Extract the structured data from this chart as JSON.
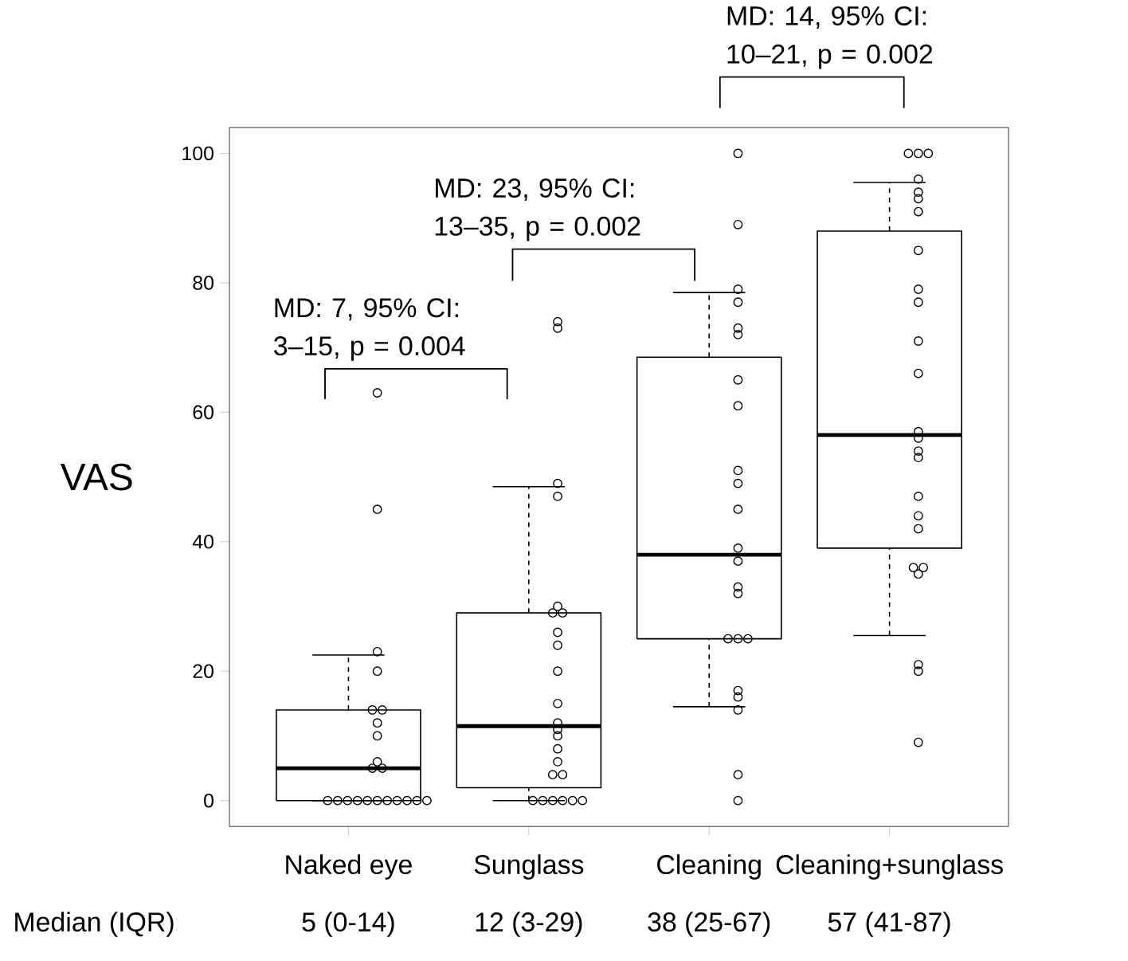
{
  "chart_data": {
    "type": "box",
    "ylabel": "VAS",
    "categories": [
      "Naked eye",
      "Sunglass",
      "Cleaning",
      "Cleaning+sunglass"
    ],
    "boxes": [
      {
        "low": 0,
        "q1": 0,
        "median": 5,
        "q3": 14,
        "high": 22.5
      },
      {
        "low": 0,
        "q1": 2,
        "median": 11.5,
        "q3": 29,
        "high": 48.5
      },
      {
        "low": 14.5,
        "q1": 25,
        "median": 38,
        "q3": 68.5,
        "high": 78.5
      },
      {
        "low": 25.5,
        "q1": 39,
        "median": 56.5,
        "q3": 88,
        "high": 95.5
      }
    ],
    "series": [
      {
        "type": "scatter",
        "color": "#000000",
        "x": [
          "Naked eye",
          "Naked eye",
          "Naked eye",
          "Naked eye",
          "Naked eye",
          "Naked eye",
          "Naked eye",
          "Naked eye",
          "Naked eye",
          "Naked eye",
          "Naked eye",
          "Naked eye",
          "Naked eye",
          "Naked eye",
          "Naked eye",
          "Naked eye",
          "Naked eye",
          "Naked eye",
          "Naked eye",
          "Naked eye",
          "Naked eye",
          "Naked eye"
        ],
        "values": [
          63,
          45,
          23,
          20,
          14,
          14,
          12,
          10,
          6,
          5,
          5,
          0,
          0,
          0,
          0,
          0,
          0,
          0,
          0,
          0,
          0,
          0
        ]
      },
      {
        "type": "scatter",
        "color": "#000000",
        "x": [
          "Sunglass",
          "Sunglass",
          "Sunglass",
          "Sunglass",
          "Sunglass",
          "Sunglass",
          "Sunglass",
          "Sunglass",
          "Sunglass",
          "Sunglass",
          "Sunglass",
          "Sunglass",
          "Sunglass",
          "Sunglass",
          "Sunglass",
          "Sunglass",
          "Sunglass",
          "Sunglass",
          "Sunglass",
          "Sunglass",
          "Sunglass",
          "Sunglass",
          "Sunglass",
          "Sunglass"
        ],
        "values": [
          74,
          73,
          49,
          47,
          30,
          29,
          29,
          26,
          24,
          20,
          15,
          12,
          11,
          10,
          8,
          6,
          4,
          4,
          0,
          0,
          0,
          0,
          0,
          0
        ]
      },
      {
        "type": "scatter",
        "color": "#000000",
        "x": [
          "Cleaning",
          "Cleaning",
          "Cleaning",
          "Cleaning",
          "Cleaning",
          "Cleaning",
          "Cleaning",
          "Cleaning",
          "Cleaning",
          "Cleaning",
          "Cleaning",
          "Cleaning",
          "Cleaning",
          "Cleaning",
          "Cleaning",
          "Cleaning",
          "Cleaning",
          "Cleaning",
          "Cleaning",
          "Cleaning",
          "Cleaning",
          "Cleaning",
          "Cleaning"
        ],
        "values": [
          100,
          89,
          79,
          77,
          73,
          72,
          65,
          61,
          51,
          49,
          45,
          39,
          37,
          33,
          32,
          25,
          25,
          25,
          17,
          16,
          14,
          4,
          0
        ]
      },
      {
        "type": "scatter",
        "color": "#000000",
        "x": [
          "Cleaning+sunglass",
          "Cleaning+sunglass",
          "Cleaning+sunglass",
          "Cleaning+sunglass",
          "Cleaning+sunglass",
          "Cleaning+sunglass",
          "Cleaning+sunglass",
          "Cleaning+sunglass",
          "Cleaning+sunglass",
          "Cleaning+sunglass",
          "Cleaning+sunglass",
          "Cleaning+sunglass",
          "Cleaning+sunglass",
          "Cleaning+sunglass",
          "Cleaning+sunglass",
          "Cleaning+sunglass",
          "Cleaning+sunglass",
          "Cleaning+sunglass",
          "Cleaning+sunglass",
          "Cleaning+sunglass",
          "Cleaning+sunglass",
          "Cleaning+sunglass",
          "Cleaning+sunglass",
          "Cleaning+sunglass",
          "Cleaning+sunglass"
        ],
        "values": [
          100,
          100,
          100,
          96,
          94,
          93,
          91,
          85,
          79,
          77,
          71,
          66,
          57,
          56,
          54,
          53,
          47,
          44,
          42,
          36,
          36,
          35,
          21,
          20,
          9
        ]
      }
    ],
    "marker": "circle",
    "ylim": [
      -4,
      104
    ],
    "yticks": [
      0,
      20,
      40,
      60,
      80,
      100
    ],
    "annotations": [
      "MD: 7, 95% CI: 3–15, p = 0.004",
      "MD: 23, 95% CI: 13–35, p = 0.002",
      "MD: 14, 95% CI: 10–21, p = 0.002",
      "Median (IQR)",
      "5 (0-14)",
      "12 (3-29)",
      "38 (25-67)",
      "57 (41-87)"
    ]
  }
}
